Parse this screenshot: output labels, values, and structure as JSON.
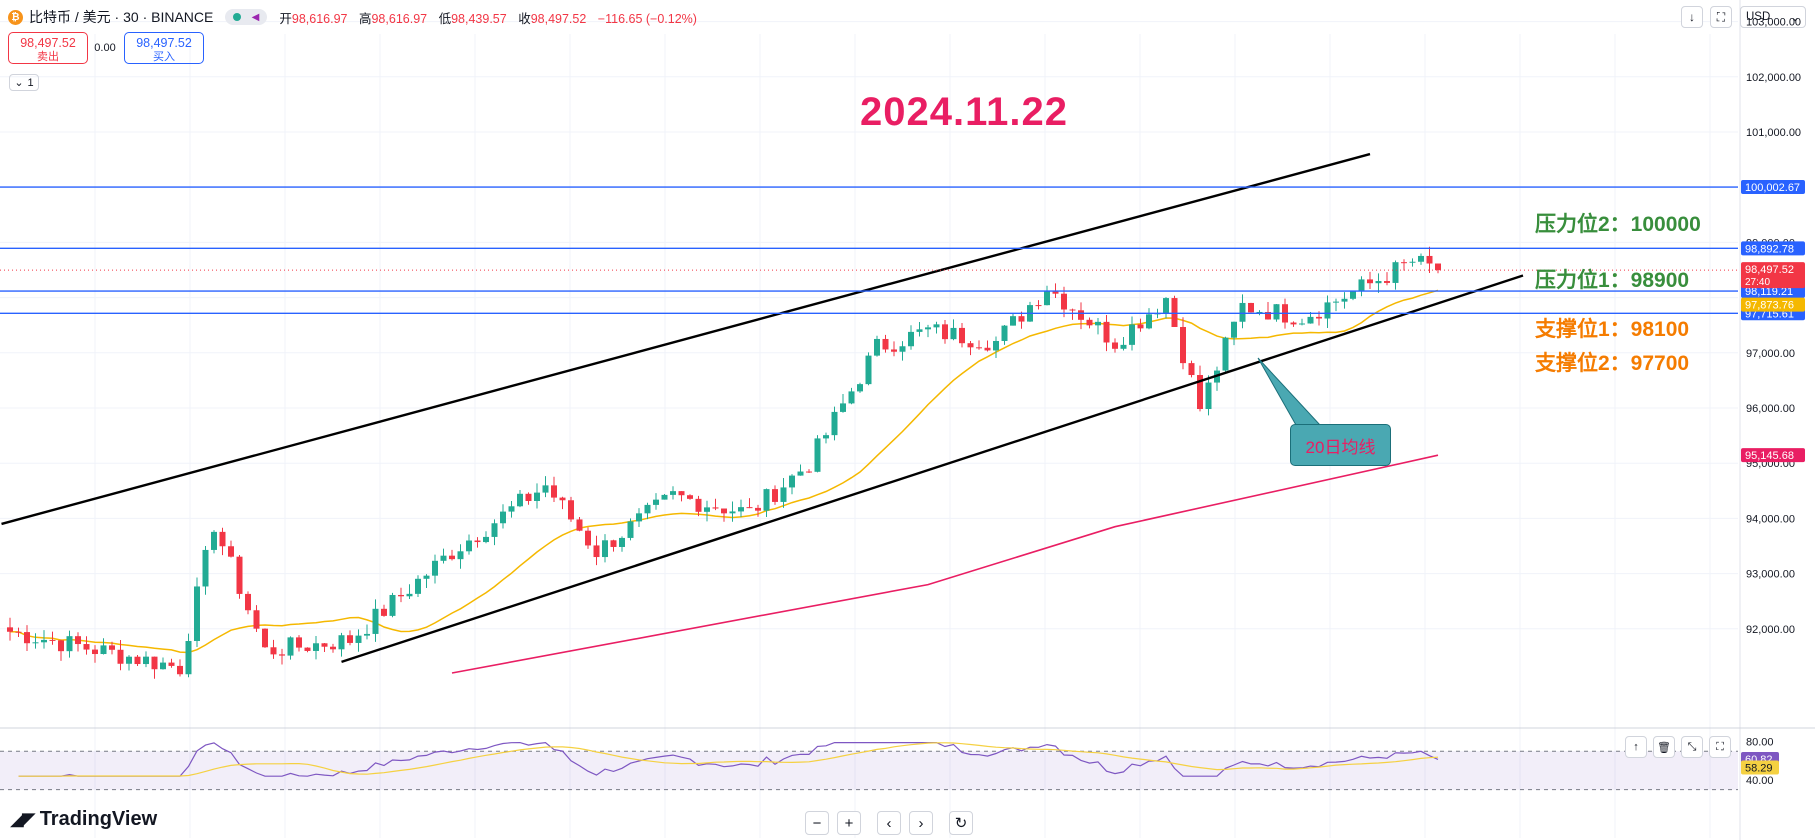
{
  "header": {
    "coin_glyph": "₿",
    "symbol": "比特币 / 美元 · 30 · BINANCE",
    "ohlc": [
      {
        "label": "开",
        "value": "98,616.97"
      },
      {
        "label": "高",
        "value": "98,616.97"
      },
      {
        "label": "低",
        "value": "98,439.57"
      },
      {
        "label": "收",
        "value": "98,497.52"
      }
    ],
    "change": "−116.65 (−0.12%)"
  },
  "trade": {
    "sell_price": "98,497.52",
    "sell_label": "卖出",
    "spread": "0.00",
    "buy_price": "98,497.52",
    "buy_label": "买入",
    "collapse_count": "1"
  },
  "toolbar": {
    "currency": "USD"
  },
  "annotations": {
    "date": "2024.11.22",
    "resistance2": "压力位2：100000",
    "resistance1": "压力位1：98900",
    "support1": "支撑位1：98100",
    "support2": "支撑位2：97700",
    "ma_callout": "20日均线"
  },
  "branding": {
    "logo_text": "TradingView"
  },
  "colors": {
    "up": "#22ab94",
    "down": "#f23645",
    "ma20": "#f5b800",
    "ma200": "#e91e63",
    "hline": "#2962ff",
    "channel": "#000000",
    "rsi": "#7e57c2",
    "rsi_ma": "#f5d142"
  },
  "chart_data": {
    "type": "candlestick",
    "symbol": "BTC/USD",
    "interval": "30",
    "exchange": "BINANCE",
    "y_ticks": [
      103000,
      102000,
      101000,
      100000,
      99000,
      98000,
      97000,
      96000,
      95000,
      94000,
      93000,
      92000
    ],
    "y_tick_labels": [
      "103,000.00",
      "102,000.00",
      "101,000.00",
      "100,000.00",
      "99,000.00",
      "98,000.00",
      "97,000.00",
      "96,000.00",
      "95,000.00",
      "94,000.00",
      "93,000.00",
      "92,000.00"
    ],
    "ylim": [
      91200,
      103500
    ],
    "candle_count": 136,
    "key_points": [
      {
        "i": 0,
        "price": 91950
      },
      {
        "i": 20,
        "price": 91300
      },
      {
        "i": 24,
        "price": 93900
      },
      {
        "i": 30,
        "price": 91600
      },
      {
        "i": 40,
        "price": 91800
      },
      {
        "i": 52,
        "price": 93400
      },
      {
        "i": 63,
        "price": 94600
      },
      {
        "i": 69,
        "price": 93400
      },
      {
        "i": 78,
        "price": 94400
      },
      {
        "i": 87,
        "price": 94100
      },
      {
        "i": 94,
        "price": 95000
      },
      {
        "i": 102,
        "price": 97100
      },
      {
        "i": 108,
        "price": 97400
      },
      {
        "i": 116,
        "price": 97200
      },
      {
        "i": 122,
        "price": 98200
      },
      {
        "i": 130,
        "price": 97200
      },
      {
        "i": 136,
        "price": 98000
      },
      {
        "i": 140,
        "price": 96000
      },
      {
        "i": 145,
        "price": 97850
      },
      {
        "i": 152,
        "price": 97650
      },
      {
        "i": 160,
        "price": 98250
      },
      {
        "i": 165,
        "price": 98650
      },
      {
        "i": 168,
        "price": 98500
      }
    ],
    "horizontal_levels": [
      {
        "price": 100002.67,
        "label": "100,002.67",
        "color": "#2962ff"
      },
      {
        "price": 98892.78,
        "label": "98,892.78",
        "color": "#2962ff"
      },
      {
        "price": 98119.21,
        "label": "98,119.21",
        "color": "#2962ff"
      },
      {
        "price": 97715.61,
        "label": "97,715.61",
        "color": "#2962ff"
      }
    ],
    "price_labels": [
      {
        "price": 98497.52,
        "label": "98,497.52",
        "sub": "27:40",
        "color": "#f23645"
      },
      {
        "price": 97873.76,
        "label": "97,873.76",
        "color": "#f5b800"
      },
      {
        "price": 95145.68,
        "label": "95,145.68",
        "color": "#e91e63"
      }
    ],
    "channel_upper": [
      {
        "i": -1,
        "price": 93900
      },
      {
        "i": 160,
        "price": 100600
      }
    ],
    "channel_lower": [
      {
        "i": 39,
        "price": 91400
      },
      {
        "i": 178,
        "price": 98400
      }
    ],
    "ma200": [
      {
        "i": 52,
        "price": 91200
      },
      {
        "i": 108,
        "price": 92800
      },
      {
        "i": 130,
        "price": 93850
      },
      {
        "i": 168,
        "price": 95145.68
      }
    ],
    "rsi": {
      "y_ticks": [
        80,
        40
      ],
      "levels": [
        70,
        30
      ],
      "current": "60.82",
      "ma": "58.29"
    }
  }
}
